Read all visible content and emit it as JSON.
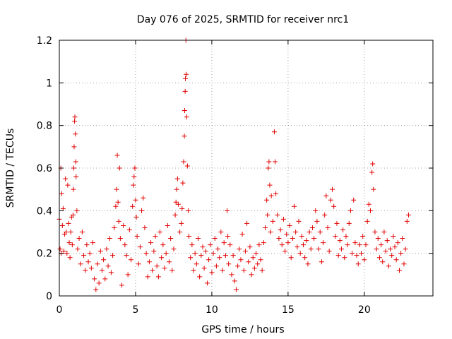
{
  "chart_data": {
    "type": "scatter",
    "title": "Day 076 of 2025, SRMTID for receiver nrc1",
    "xlabel": "GPS time / hours",
    "ylabel": "SRMTID / TECUs",
    "xlim": [
      0,
      24.5
    ],
    "ylim": [
      0,
      1.2
    ],
    "xticks": [
      0,
      5,
      10,
      15,
      20
    ],
    "xtick_labels": [
      "0",
      "5",
      "10",
      "15",
      "20"
    ],
    "yticks": [
      0,
      0.2,
      0.4,
      0.6,
      0.8,
      1,
      1.2
    ],
    "ytick_labels": [
      "0",
      "0.2",
      "0.4",
      "0.6",
      "0.8",
      "1",
      "1.2"
    ],
    "grid": true,
    "marker": "+",
    "series": [
      {
        "name": "SRMTID",
        "color": "#e00000",
        "points": [
          [
            0.0,
            0.36
          ],
          [
            0.05,
            0.22
          ],
          [
            0.1,
            0.6
          ],
          [
            0.12,
            0.2
          ],
          [
            0.15,
            0.48
          ],
          [
            0.2,
            0.33
          ],
          [
            0.25,
            0.41
          ],
          [
            0.3,
            0.21
          ],
          [
            0.35,
            0.29
          ],
          [
            0.4,
            0.55
          ],
          [
            0.45,
            0.3
          ],
          [
            0.5,
            0.2
          ],
          [
            0.55,
            0.52
          ],
          [
            0.6,
            0.34
          ],
          [
            0.65,
            0.25
          ],
          [
            0.7,
            0.18
          ],
          [
            0.75,
            0.3
          ],
          [
            0.8,
            0.37
          ],
          [
            0.85,
            0.24
          ],
          [
            0.9,
            0.38
          ],
          [
            0.92,
            0.5
          ],
          [
            0.95,
            0.6
          ],
          [
            0.97,
            0.7
          ],
          [
            1.0,
            0.82
          ],
          [
            1.02,
            0.84
          ],
          [
            1.05,
            0.76
          ],
          [
            1.08,
            0.63
          ],
          [
            1.1,
            0.56
          ],
          [
            1.15,
            0.4
          ],
          [
            1.2,
            0.22
          ],
          [
            1.3,
            0.27
          ],
          [
            1.4,
            0.15
          ],
          [
            1.5,
            0.3
          ],
          [
            1.6,
            0.19
          ],
          [
            1.7,
            0.12
          ],
          [
            1.8,
            0.24
          ],
          [
            1.9,
            0.16
          ],
          [
            2.0,
            0.2
          ],
          [
            2.1,
            0.13
          ],
          [
            2.2,
            0.25
          ],
          [
            2.3,
            0.08
          ],
          [
            2.4,
            0.03
          ],
          [
            2.5,
            0.15
          ],
          [
            2.6,
            0.06
          ],
          [
            2.7,
            0.21
          ],
          [
            2.8,
            0.12
          ],
          [
            2.9,
            0.17
          ],
          [
            3.0,
            0.08
          ],
          [
            3.1,
            0.22
          ],
          [
            3.2,
            0.14
          ],
          [
            3.3,
            0.27
          ],
          [
            3.4,
            0.11
          ],
          [
            3.5,
            0.19
          ],
          [
            3.6,
            0.32
          ],
          [
            3.7,
            0.42
          ],
          [
            3.75,
            0.5
          ],
          [
            3.8,
            0.66
          ],
          [
            3.85,
            0.44
          ],
          [
            3.9,
            0.35
          ],
          [
            3.95,
            0.6
          ],
          [
            4.0,
            0.27
          ],
          [
            4.1,
            0.05
          ],
          [
            4.2,
            0.33
          ],
          [
            4.3,
            0.24
          ],
          [
            4.4,
            0.19
          ],
          [
            4.5,
            0.1
          ],
          [
            4.6,
            0.31
          ],
          [
            4.7,
            0.17
          ],
          [
            4.8,
            0.42
          ],
          [
            4.85,
            0.52
          ],
          [
            4.9,
            0.56
          ],
          [
            4.95,
            0.6
          ],
          [
            5.0,
            0.45
          ],
          [
            5.05,
            0.37
          ],
          [
            5.1,
            0.28
          ],
          [
            5.2,
            0.15
          ],
          [
            5.3,
            0.23
          ],
          [
            5.4,
            0.4
          ],
          [
            5.5,
            0.46
          ],
          [
            5.6,
            0.32
          ],
          [
            5.7,
            0.2
          ],
          [
            5.8,
            0.09
          ],
          [
            5.9,
            0.16
          ],
          [
            6.0,
            0.25
          ],
          [
            6.1,
            0.12
          ],
          [
            6.2,
            0.21
          ],
          [
            6.3,
            0.28
          ],
          [
            6.4,
            0.14
          ],
          [
            6.5,
            0.09
          ],
          [
            6.6,
            0.3
          ],
          [
            6.7,
            0.18
          ],
          [
            6.8,
            0.24
          ],
          [
            6.9,
            0.13
          ],
          [
            7.0,
            0.2
          ],
          [
            7.1,
            0.33
          ],
          [
            7.2,
            0.16
          ],
          [
            7.3,
            0.27
          ],
          [
            7.4,
            0.12
          ],
          [
            7.5,
            0.22
          ],
          [
            7.6,
            0.38
          ],
          [
            7.65,
            0.44
          ],
          [
            7.7,
            0.5
          ],
          [
            7.75,
            0.55
          ],
          [
            7.8,
            0.43
          ],
          [
            7.9,
            0.3
          ],
          [
            8.0,
            0.34
          ],
          [
            8.05,
            0.41
          ],
          [
            8.1,
            0.53
          ],
          [
            8.15,
            0.63
          ],
          [
            8.2,
            0.75
          ],
          [
            8.22,
            0.87
          ],
          [
            8.25,
            0.96
          ],
          [
            8.27,
            1.02
          ],
          [
            8.3,
            1.2
          ],
          [
            8.32,
            1.04
          ],
          [
            8.35,
            0.84
          ],
          [
            8.4,
            0.61
          ],
          [
            8.45,
            0.4
          ],
          [
            8.5,
            0.28
          ],
          [
            8.6,
            0.18
          ],
          [
            8.7,
            0.24
          ],
          [
            8.8,
            0.12
          ],
          [
            8.9,
            0.2
          ],
          [
            9.0,
            0.15
          ],
          [
            9.1,
            0.27
          ],
          [
            9.2,
            0.09
          ],
          [
            9.3,
            0.19
          ],
          [
            9.4,
            0.23
          ],
          [
            9.5,
            0.13
          ],
          [
            9.6,
            0.21
          ],
          [
            9.7,
            0.06
          ],
          [
            9.8,
            0.17
          ],
          [
            9.9,
            0.24
          ],
          [
            10.0,
            0.11
          ],
          [
            10.1,
            0.2
          ],
          [
            10.2,
            0.27
          ],
          [
            10.3,
            0.14
          ],
          [
            10.4,
            0.22
          ],
          [
            10.5,
            0.18
          ],
          [
            10.6,
            0.3
          ],
          [
            10.7,
            0.12
          ],
          [
            10.8,
            0.25
          ],
          [
            10.9,
            0.19
          ],
          [
            11.0,
            0.4
          ],
          [
            11.05,
            0.28
          ],
          [
            11.1,
            0.15
          ],
          [
            11.2,
            0.24
          ],
          [
            11.3,
            0.1
          ],
          [
            11.4,
            0.19
          ],
          [
            11.5,
            0.07
          ],
          [
            11.6,
            0.03
          ],
          [
            11.7,
            0.14
          ],
          [
            11.8,
            0.22
          ],
          [
            11.9,
            0.17
          ],
          [
            12.0,
            0.29
          ],
          [
            12.1,
            0.12
          ],
          [
            12.2,
            0.21
          ],
          [
            12.3,
            0.34
          ],
          [
            12.4,
            0.16
          ],
          [
            12.5,
            0.23
          ],
          [
            12.6,
            0.1
          ],
          [
            12.7,
            0.18
          ],
          [
            12.8,
            0.13
          ],
          [
            12.9,
            0.2
          ],
          [
            13.0,
            0.15
          ],
          [
            13.1,
            0.24
          ],
          [
            13.2,
            0.17
          ],
          [
            13.3,
            0.12
          ],
          [
            13.4,
            0.25
          ],
          [
            13.5,
            0.32
          ],
          [
            13.6,
            0.45
          ],
          [
            13.65,
            0.38
          ],
          [
            13.7,
            0.6
          ],
          [
            13.75,
            0.63
          ],
          [
            13.8,
            0.52
          ],
          [
            13.85,
            0.3
          ],
          [
            13.9,
            0.47
          ],
          [
            14.0,
            0.35
          ],
          [
            14.1,
            0.77
          ],
          [
            14.15,
            0.63
          ],
          [
            14.2,
            0.48
          ],
          [
            14.3,
            0.38
          ],
          [
            14.4,
            0.27
          ],
          [
            14.5,
            0.31
          ],
          [
            14.6,
            0.24
          ],
          [
            14.7,
            0.36
          ],
          [
            14.8,
            0.21
          ],
          [
            14.9,
            0.29
          ],
          [
            15.0,
            0.25
          ],
          [
            15.1,
            0.33
          ],
          [
            15.2,
            0.18
          ],
          [
            15.3,
            0.27
          ],
          [
            15.4,
            0.42
          ],
          [
            15.5,
            0.3
          ],
          [
            15.6,
            0.23
          ],
          [
            15.7,
            0.35
          ],
          [
            15.8,
            0.2
          ],
          [
            15.9,
            0.28
          ],
          [
            16.0,
            0.24
          ],
          [
            16.1,
            0.18
          ],
          [
            16.2,
            0.26
          ],
          [
            16.3,
            0.15
          ],
          [
            16.4,
            0.3
          ],
          [
            16.5,
            0.22
          ],
          [
            16.6,
            0.32
          ],
          [
            16.7,
            0.27
          ],
          [
            16.8,
            0.4
          ],
          [
            16.9,
            0.35
          ],
          [
            17.0,
            0.22
          ],
          [
            17.1,
            0.3
          ],
          [
            17.2,
            0.16
          ],
          [
            17.3,
            0.25
          ],
          [
            17.4,
            0.38
          ],
          [
            17.5,
            0.47
          ],
          [
            17.6,
            0.32
          ],
          [
            17.7,
            0.21
          ],
          [
            17.8,
            0.45
          ],
          [
            17.9,
            0.5
          ],
          [
            18.0,
            0.42
          ],
          [
            18.1,
            0.28
          ],
          [
            18.2,
            0.34
          ],
          [
            18.3,
            0.19
          ],
          [
            18.4,
            0.26
          ],
          [
            18.5,
            0.22
          ],
          [
            18.6,
            0.31
          ],
          [
            18.7,
            0.18
          ],
          [
            18.8,
            0.28
          ],
          [
            18.9,
            0.24
          ],
          [
            19.0,
            0.34
          ],
          [
            19.1,
            0.4
          ],
          [
            19.2,
            0.2
          ],
          [
            19.3,
            0.45
          ],
          [
            19.4,
            0.25
          ],
          [
            19.5,
            0.19
          ],
          [
            19.6,
            0.15
          ],
          [
            19.7,
            0.24
          ],
          [
            19.8,
            0.2
          ],
          [
            19.9,
            0.28
          ],
          [
            20.0,
            0.17
          ],
          [
            20.1,
            0.24
          ],
          [
            20.2,
            0.35
          ],
          [
            20.3,
            0.43
          ],
          [
            20.4,
            0.4
          ],
          [
            20.5,
            0.58
          ],
          [
            20.55,
            0.62
          ],
          [
            20.6,
            0.5
          ],
          [
            20.7,
            0.3
          ],
          [
            20.8,
            0.22
          ],
          [
            20.9,
            0.27
          ],
          [
            21.0,
            0.18
          ],
          [
            21.1,
            0.24
          ],
          [
            21.2,
            0.16
          ],
          [
            21.3,
            0.3
          ],
          [
            21.4,
            0.21
          ],
          [
            21.5,
            0.26
          ],
          [
            21.6,
            0.14
          ],
          [
            21.7,
            0.22
          ],
          [
            21.8,
            0.19
          ],
          [
            21.9,
            0.28
          ],
          [
            22.0,
            0.23
          ],
          [
            22.1,
            0.17
          ],
          [
            22.2,
            0.25
          ],
          [
            22.3,
            0.12
          ],
          [
            22.4,
            0.2
          ],
          [
            22.5,
            0.27
          ],
          [
            22.6,
            0.15
          ],
          [
            22.7,
            0.22
          ],
          [
            22.8,
            0.35
          ],
          [
            22.9,
            0.38
          ]
        ]
      }
    ]
  }
}
